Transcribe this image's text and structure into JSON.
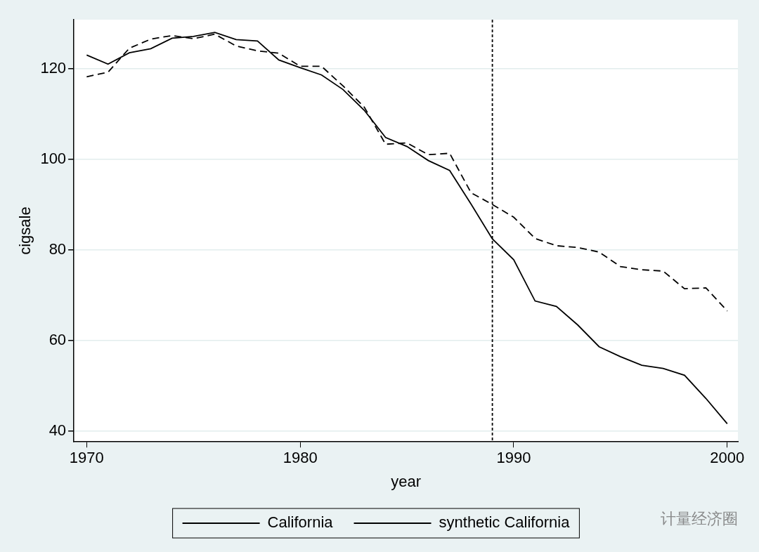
{
  "chart_data": {
    "type": "line",
    "x_label": "year",
    "y_label": "cigsale",
    "x": [
      1970,
      1971,
      1972,
      1973,
      1974,
      1975,
      1976,
      1977,
      1978,
      1979,
      1980,
      1981,
      1982,
      1983,
      1984,
      1985,
      1986,
      1987,
      1988,
      1989,
      1990,
      1991,
      1992,
      1993,
      1994,
      1995,
      1996,
      1997,
      1998,
      1999,
      2000
    ],
    "series": [
      {
        "name": "California",
        "color": "#000000",
        "line_style": "solid",
        "marker": "none",
        "values": [
          123.0,
          121.0,
          123.5,
          124.4,
          126.7,
          127.1,
          128.0,
          126.4,
          126.1,
          121.9,
          120.2,
          118.6,
          115.4,
          110.8,
          104.8,
          102.8,
          99.7,
          97.5,
          90.1,
          82.4,
          77.8,
          68.7,
          67.5,
          63.4,
          58.6,
          56.4,
          54.5,
          53.8,
          52.3,
          47.2,
          41.6
        ]
      },
      {
        "name": "synthetic California",
        "color": "#000000",
        "line_style": "dashed",
        "marker": "none",
        "values": [
          118.2,
          119.2,
          124.5,
          126.5,
          127.3,
          126.6,
          127.6,
          125.0,
          123.9,
          123.4,
          120.5,
          120.5,
          116.2,
          111.5,
          103.3,
          103.6,
          101.0,
          101.3,
          92.6,
          90.0,
          87.2,
          82.5,
          80.9,
          80.5,
          79.5,
          76.3,
          75.6,
          75.3,
          71.4,
          71.6,
          66.5
        ]
      }
    ],
    "xlim": [
      1969.4,
      2000.5
    ],
    "xticks": [
      1970,
      1980,
      1990,
      2000
    ],
    "ylim": [
      37.6,
      130.8
    ],
    "yticks": [
      40,
      60,
      80,
      100,
      120
    ],
    "vline": 1989,
    "grid": true,
    "legend": "bottom",
    "watermark": "计量经济圈"
  }
}
